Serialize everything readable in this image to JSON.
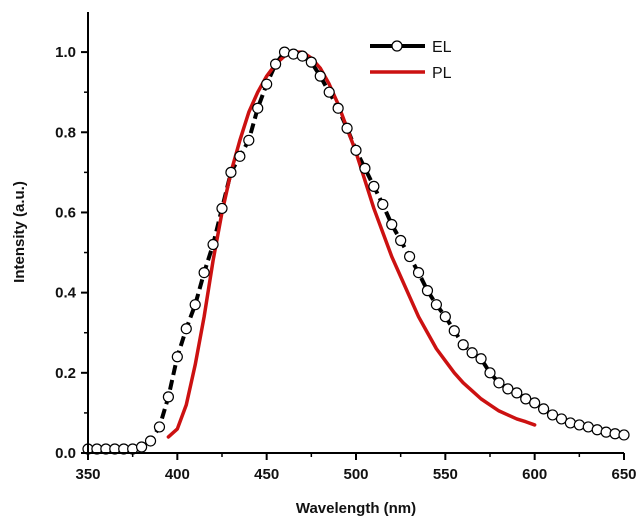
{
  "chart_data": {
    "type": "line",
    "xlabel": "Wavelength (nm)",
    "ylabel": "Intensity (a.u.)",
    "xlim": [
      350,
      650
    ],
    "ylim": [
      0.0,
      1.1
    ],
    "x_ticks": [
      350,
      400,
      450,
      500,
      550,
      600,
      650
    ],
    "x_tick_labels": [
      "350",
      "400",
      "450",
      "500",
      "550",
      "600",
      "650"
    ],
    "y_ticks": [
      0.0,
      0.2,
      0.4,
      0.6,
      0.8,
      1.0
    ],
    "y_tick_labels": [
      "0.0",
      "0.2",
      "0.4",
      "0.6",
      "0.8",
      "1.0"
    ],
    "grid": false,
    "legend_position": "top-right",
    "series": [
      {
        "name": "EL",
        "color": "#000000",
        "line_style": "dashed",
        "marker": "open-circle",
        "x": [
          350,
          355,
          360,
          365,
          370,
          375,
          380,
          385,
          390,
          395,
          400,
          405,
          410,
          415,
          420,
          425,
          430,
          435,
          440,
          445,
          450,
          455,
          460,
          465,
          470,
          475,
          480,
          485,
          490,
          495,
          500,
          505,
          510,
          515,
          520,
          525,
          530,
          535,
          540,
          545,
          550,
          555,
          560,
          565,
          570,
          575,
          580,
          585,
          590,
          595,
          600,
          605,
          610,
          615,
          620,
          625,
          630,
          635,
          640,
          645,
          650
        ],
        "y": [
          0.01,
          0.01,
          0.01,
          0.01,
          0.01,
          0.01,
          0.015,
          0.03,
          0.065,
          0.14,
          0.24,
          0.31,
          0.37,
          0.45,
          0.52,
          0.61,
          0.7,
          0.74,
          0.78,
          0.86,
          0.92,
          0.97,
          1.0,
          0.995,
          0.99,
          0.975,
          0.94,
          0.9,
          0.86,
          0.81,
          0.755,
          0.71,
          0.665,
          0.62,
          0.57,
          0.53,
          0.49,
          0.45,
          0.405,
          0.37,
          0.34,
          0.305,
          0.27,
          0.25,
          0.235,
          0.2,
          0.175,
          0.16,
          0.15,
          0.135,
          0.125,
          0.11,
          0.095,
          0.085,
          0.075,
          0.07,
          0.065,
          0.058,
          0.052,
          0.048,
          0.045
        ]
      },
      {
        "name": "PL",
        "color": "#cc1111",
        "line_style": "solid",
        "marker": "none",
        "x": [
          395,
          400,
          405,
          410,
          415,
          420,
          425,
          430,
          435,
          440,
          445,
          450,
          455,
          460,
          465,
          470,
          475,
          480,
          485,
          490,
          495,
          500,
          505,
          510,
          515,
          520,
          525,
          530,
          535,
          540,
          545,
          550,
          555,
          560,
          565,
          570,
          575,
          580,
          585,
          590,
          595,
          600
        ],
        "y": [
          0.04,
          0.06,
          0.12,
          0.22,
          0.34,
          0.48,
          0.6,
          0.7,
          0.78,
          0.85,
          0.9,
          0.94,
          0.97,
          0.99,
          1.0,
          1.0,
          0.985,
          0.96,
          0.92,
          0.87,
          0.81,
          0.75,
          0.68,
          0.61,
          0.55,
          0.49,
          0.44,
          0.39,
          0.34,
          0.3,
          0.26,
          0.23,
          0.2,
          0.175,
          0.155,
          0.135,
          0.12,
          0.105,
          0.095,
          0.085,
          0.078,
          0.07
        ]
      }
    ]
  }
}
